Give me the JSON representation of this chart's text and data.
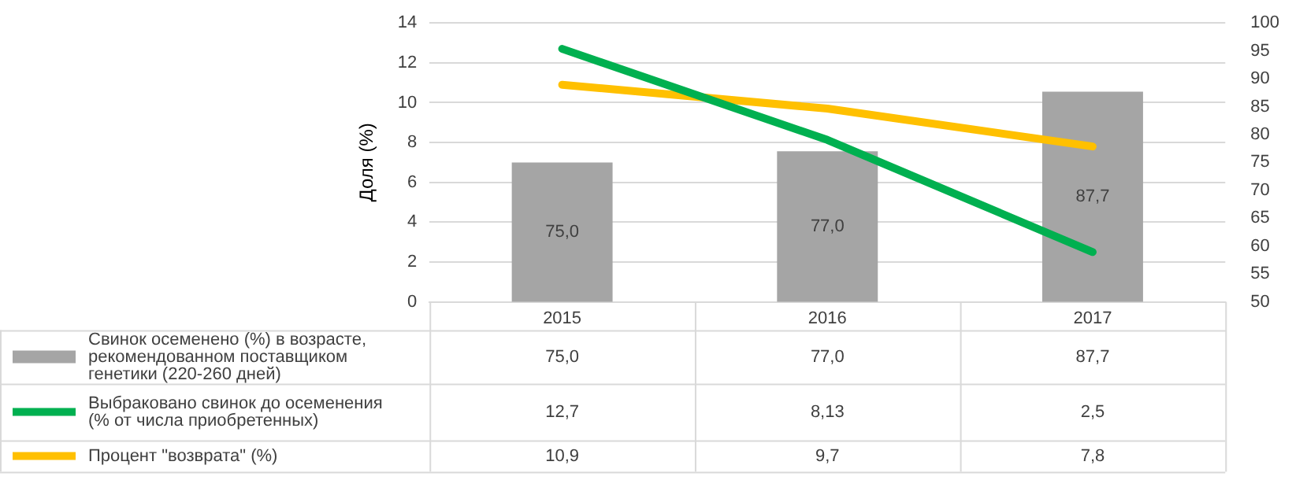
{
  "chart_data": {
    "type": "bar",
    "categories": [
      "2015",
      "2016",
      "2017"
    ],
    "ylabel": "Доля (%)",
    "ylim": [
      0,
      14
    ],
    "yticks": [
      0,
      2,
      4,
      6,
      8,
      10,
      12,
      14
    ],
    "y2lim": [
      50,
      100
    ],
    "y2ticks": [
      50,
      55,
      60,
      65,
      70,
      75,
      80,
      85,
      90,
      95,
      100
    ],
    "grid": "y",
    "legend": "bottom",
    "series": [
      {
        "name": "Свинок осеменено (%) в возрасте, рекомендованном поставщиком генетики (220-260 дней)",
        "axis": "y2",
        "color": "#a5a5a5",
        "values": [
          75.0,
          77.0,
          87.7
        ],
        "value_labels": [
          "75,0",
          "77,0",
          "87,7"
        ]
      },
      {
        "name": "Выбраковано свинок до осеменения (% от числа приобретенных)",
        "type": "line",
        "color": "#00b050",
        "values": [
          12.7,
          8.13,
          2.5
        ],
        "value_labels": [
          "12,7",
          "8,13",
          "2,5"
        ]
      },
      {
        "name": "Процент \"возврата\" (%)",
        "type": "line",
        "color": "#ffc000",
        "values": [
          10.9,
          9.7,
          7.8
        ],
        "value_labels": [
          "10,9",
          "9,7",
          "7,8"
        ]
      }
    ]
  }
}
